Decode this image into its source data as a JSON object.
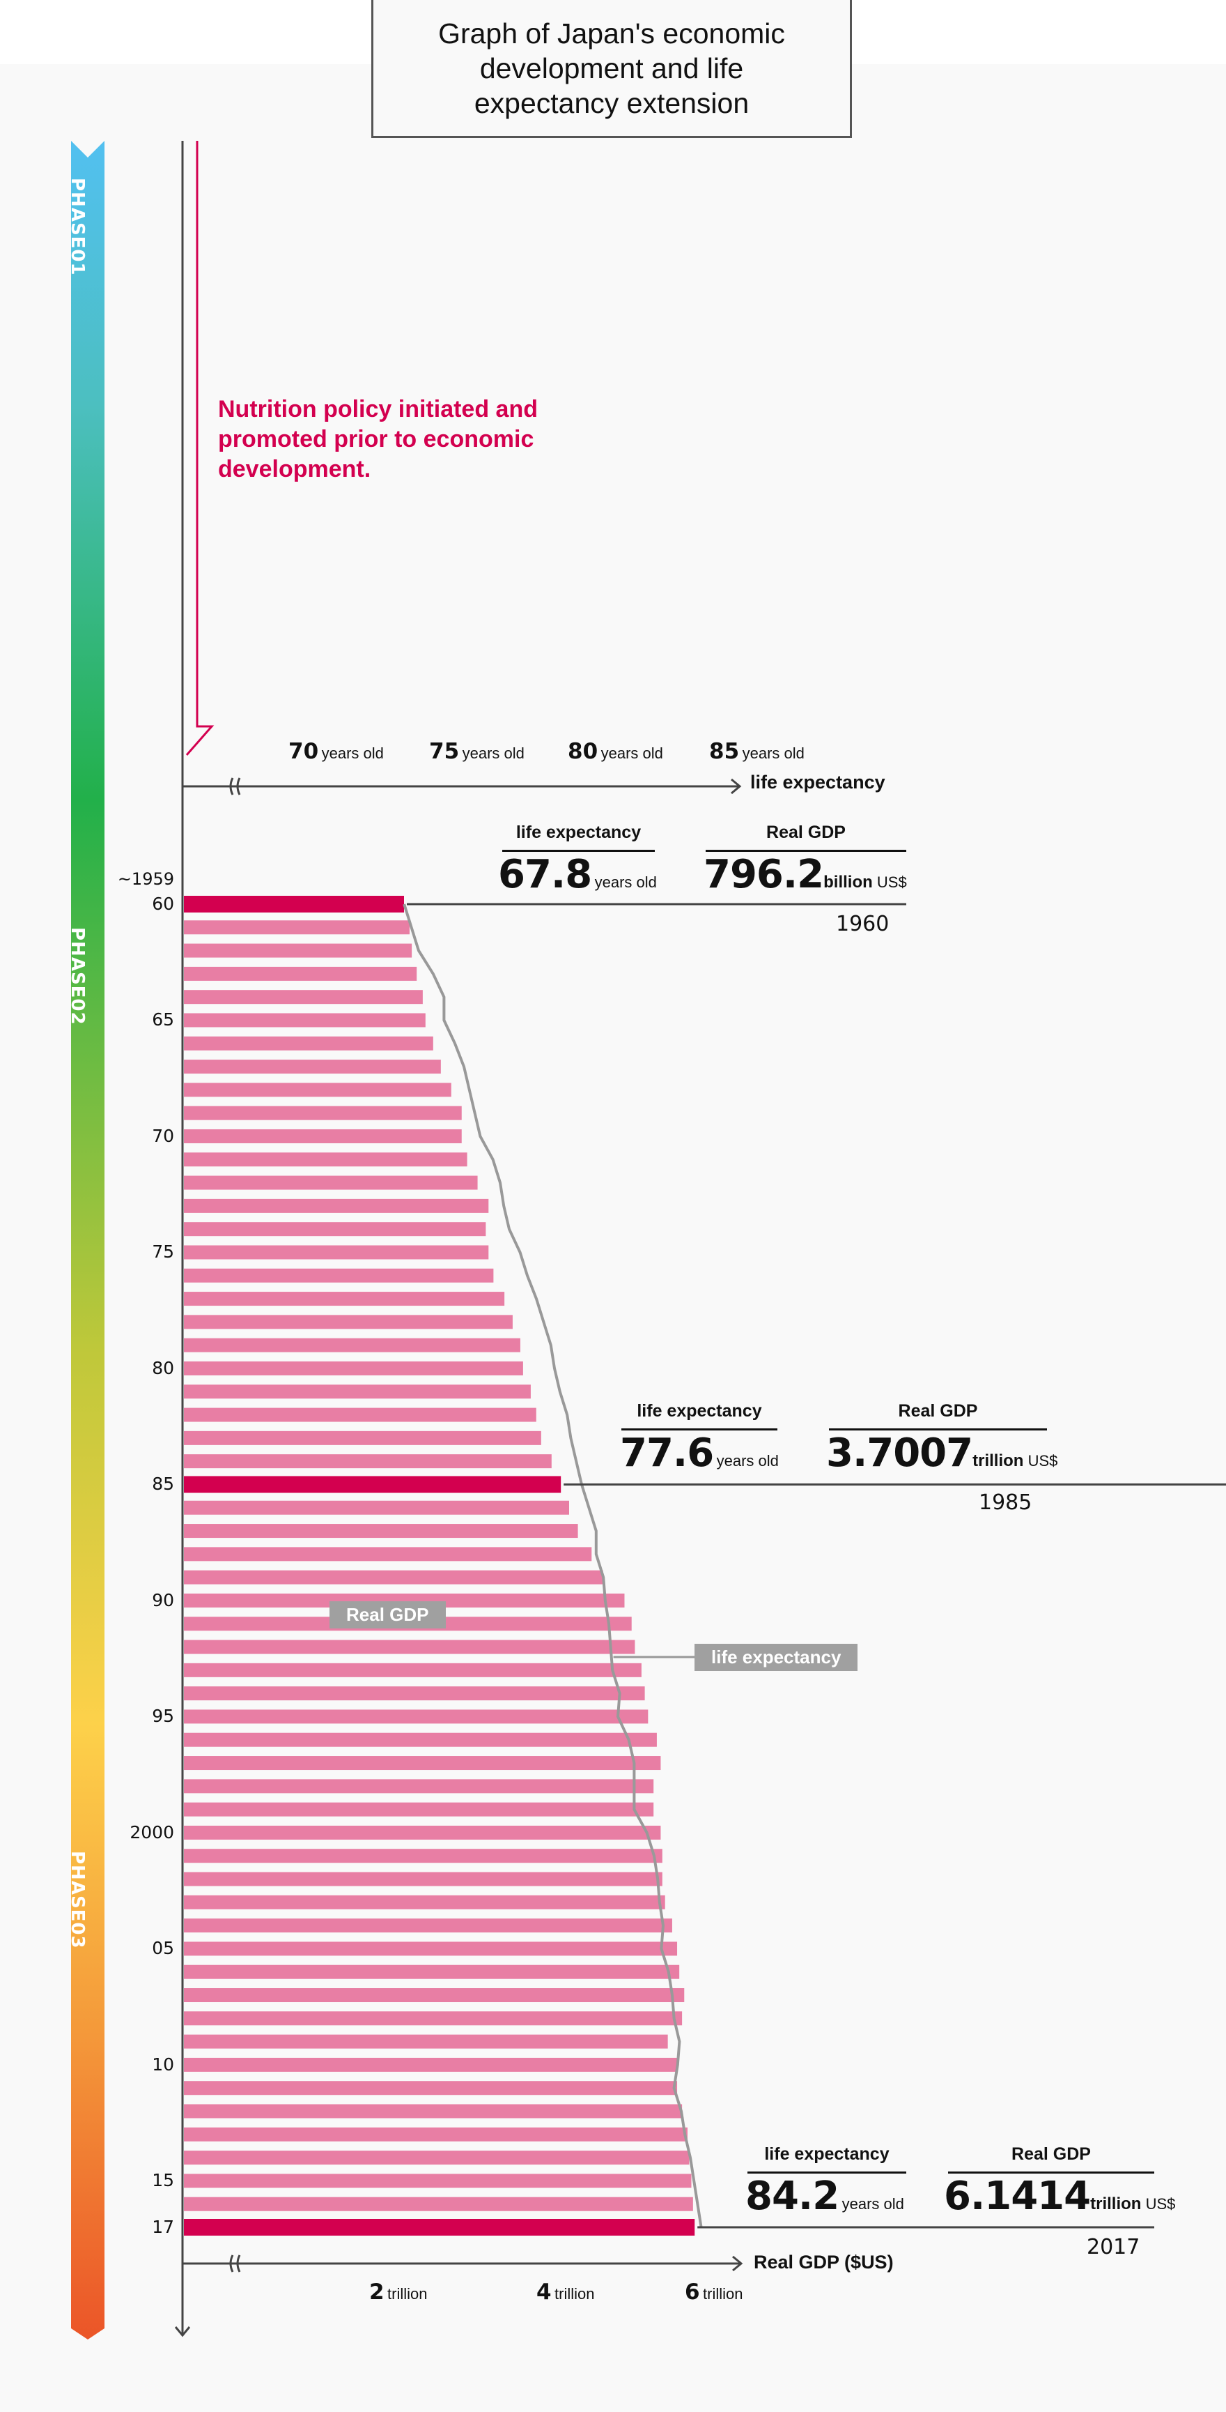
{
  "title": "Graph of Japan's economic development and life expectancy extension",
  "phases": [
    {
      "label": "PHASE01",
      "color": "#4fc3f0"
    },
    {
      "label": "PHASE02",
      "color": "#7cba3a"
    },
    {
      "label": "PHASE03",
      "color": "#f7a33c"
    }
  ],
  "note": "Nutrition policy initiated and promoted prior to economic development.",
  "colors": {
    "bar": "#e87ea4",
    "bar_highlight": "#d3004f",
    "life_line": "#999999",
    "axis": "#444444",
    "note": "#d3004f",
    "legend_tag": "#a0a0a0"
  },
  "top_axis": {
    "name": "life expectancy",
    "ticks": [
      {
        "value": "70",
        "unit": "years old"
      },
      {
        "value": "75",
        "unit": "years old"
      },
      {
        "value": "80",
        "unit": "years old"
      },
      {
        "value": "85",
        "unit": "years old"
      }
    ]
  },
  "bottom_axis": {
    "name": "Real GDP ($US)",
    "ticks": [
      {
        "value": "2",
        "unit": "trillion"
      },
      {
        "value": "4",
        "unit": "trillion"
      },
      {
        "value": "6",
        "unit": "trillion"
      }
    ]
  },
  "year_axis": {
    "start_label": "~1959",
    "labels": [
      "60",
      "65",
      "70",
      "75",
      "80",
      "85",
      "90",
      "95",
      "2000",
      "05",
      "10",
      "15",
      "17"
    ]
  },
  "callouts": [
    {
      "year": "1960",
      "le_header": "life expectancy",
      "le_value": "67.8",
      "le_unit": "years old",
      "gdp_header": "Real GDP",
      "gdp_value": "796.2",
      "gdp_scale": "billion",
      "gdp_currency": "US$"
    },
    {
      "year": "1985",
      "le_header": "life expectancy",
      "le_value": "77.6",
      "le_unit": "years old",
      "gdp_header": "Real GDP",
      "gdp_value": "3.7007",
      "gdp_scale": "trillion",
      "gdp_currency": "US$"
    },
    {
      "year": "2017",
      "le_header": "life expectancy",
      "le_value": "84.2",
      "le_unit": "years old",
      "gdp_header": "Real GDP",
      "gdp_value": "6.1414",
      "gdp_scale": "trillion",
      "gdp_currency": "US$"
    }
  ],
  "legend": {
    "gdp": "Real GDP",
    "life": "life expectancy"
  },
  "chart_data": {
    "type": "bar",
    "title": "Graph of Japan's economic development and life expectancy extension",
    "orientation": "horizontal",
    "xlabel": "Real GDP ($US)",
    "x2label": "life expectancy",
    "categories": [
      1960,
      1961,
      1962,
      1963,
      1964,
      1965,
      1966,
      1967,
      1968,
      1969,
      1970,
      1971,
      1972,
      1973,
      1974,
      1975,
      1976,
      1977,
      1978,
      1979,
      1980,
      1981,
      1982,
      1983,
      1984,
      1985,
      1986,
      1987,
      1988,
      1989,
      1990,
      1991,
      1992,
      1993,
      1994,
      1995,
      1996,
      1997,
      1998,
      1999,
      2000,
      2001,
      2002,
      2003,
      2004,
      2005,
      2006,
      2007,
      2008,
      2009,
      2010,
      2011,
      2012,
      2013,
      2014,
      2015,
      2016,
      2017
    ],
    "highlight": [
      1960,
      1985,
      2017
    ],
    "series": [
      {
        "name": "Real GDP (trillion US$)",
        "type": "bar",
        "values": [
          0.8,
          0.94,
          0.98,
          1.07,
          1.18,
          1.23,
          1.37,
          1.51,
          1.7,
          1.89,
          1.89,
          1.99,
          2.18,
          2.38,
          2.33,
          2.38,
          2.47,
          2.67,
          2.82,
          2.96,
          3.01,
          3.15,
          3.25,
          3.34,
          3.53,
          3.7,
          3.85,
          4.01,
          4.26,
          4.47,
          4.86,
          4.99,
          5.05,
          5.17,
          5.23,
          5.29,
          5.45,
          5.52,
          5.39,
          5.39,
          5.52,
          5.55,
          5.55,
          5.6,
          5.73,
          5.82,
          5.86,
          5.95,
          5.91,
          5.65,
          5.82,
          5.82,
          5.91,
          6.01,
          6.04,
          6.08,
          6.11,
          6.14
        ]
      },
      {
        "name": "life expectancy (years)",
        "type": "line",
        "values": [
          67.8,
          68.2,
          68.6,
          69.4,
          70.0,
          70.0,
          70.6,
          71.1,
          71.4,
          71.7,
          72.0,
          72.7,
          73.1,
          73.3,
          73.6,
          74.2,
          74.6,
          75.1,
          75.5,
          75.9,
          76.1,
          76.4,
          76.8,
          77.0,
          77.3,
          77.6,
          78.0,
          78.4,
          78.4,
          78.8,
          78.9,
          79.1,
          79.2,
          79.3,
          79.7,
          79.6,
          80.2,
          80.5,
          80.5,
          80.5,
          81.2,
          81.6,
          81.8,
          81.9,
          82.1,
          82.0,
          82.4,
          82.6,
          82.7,
          83.0,
          82.9,
          82.7,
          83.1,
          83.3,
          83.6,
          83.8,
          84.0,
          84.2
        ]
      }
    ],
    "grid": false
  }
}
